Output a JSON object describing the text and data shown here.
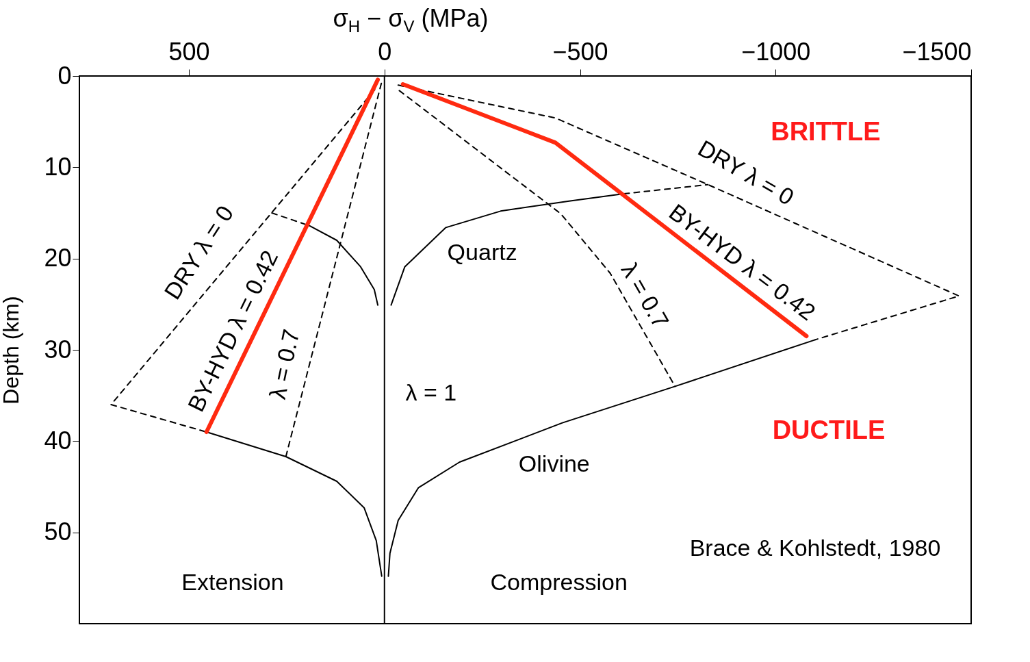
{
  "chart_data": {
    "type": "line",
    "xlabel": "σ$_{H}$ − σ$_{V}$ (MPa)",
    "ylabel": "Depth (km)",
    "xlim": [
      780,
      -1500
    ],
    "ylim": [
      60,
      0
    ],
    "xticks": [
      500,
      0,
      -500,
      -1000,
      -1500
    ],
    "yticks": [
      0,
      10,
      20,
      30,
      40,
      50
    ],
    "series": [
      {
        "color": "#000000",
        "line_style": "dashed",
        "x": [
          25,
          699,
          455
        ],
        "values": [
          1.5,
          36,
          39
        ]
      },
      {
        "color": "#000000",
        "line_style": "dashed",
        "x": [
          8,
          252
        ],
        "values": [
          0.8,
          41.7
        ]
      },
      {
        "color": "#000000",
        "line_style": "dashed",
        "x": [
          288,
          192
        ],
        "values": [
          15,
          16.4
        ]
      },
      {
        "color": "#000000",
        "line_style": "solid",
        "x": [
          192,
          122,
          61,
          26,
          17
        ],
        "values": [
          16.4,
          18,
          20.9,
          23.4,
          25.1
        ]
      },
      {
        "color": "#000000",
        "line_style": "solid",
        "x": [
          455,
          252,
          122,
          52,
          21,
          7
        ],
        "values": [
          39,
          41.7,
          44.4,
          47.3,
          50.9,
          54.8
        ]
      },
      {
        "color": "#000000",
        "line_style": "solid",
        "x": [
          -17,
          -52,
          -157,
          -297,
          -472,
          -612
        ],
        "values": [
          25.1,
          20.9,
          16.6,
          14.8,
          13.7,
          12.9
        ]
      },
      {
        "color": "#000000",
        "line_style": "dashed",
        "x": [
          -612,
          -827
        ],
        "values": [
          12.9,
          11.9
        ]
      },
      {
        "color": "#000000",
        "line_style": "dashed",
        "x": [
          -35,
          -437,
          -827,
          -1469,
          -1101
        ],
        "values": [
          1,
          4.6,
          11.9,
          24.1,
          28.9
        ]
      },
      {
        "color": "#000000",
        "line_style": "dashed",
        "x": [
          -38,
          -451,
          -577,
          -743
        ],
        "values": [
          1.6,
          15.1,
          21.6,
          34
        ]
      },
      {
        "color": "#000000",
        "line_style": "solid",
        "x": [
          -1101,
          -743,
          -455,
          -192,
          -87,
          -35,
          -14,
          -10
        ],
        "values": [
          28.9,
          34,
          38,
          42.3,
          45.1,
          48.7,
          52.3,
          54.8
        ]
      },
      {
        "color": "#ff2a10",
        "line_style": "solid",
        "x": [
          17,
          455
        ],
        "values": [
          0.4,
          39
        ]
      },
      {
        "color": "#ff2a10",
        "line_style": "solid",
        "x": [
          -47,
          -437,
          -1079
        ],
        "values": [
          0.9,
          7.3,
          28.5
        ]
      }
    ],
    "ref_lines": [
      {
        "axis": "x",
        "value": 0
      }
    ],
    "annotations": [
      "DRY λ = 0",
      "BY-HYD λ = 0.42",
      "λ = 0.7",
      "λ = 1",
      "Quartz",
      "Olivine",
      "Extension",
      "Compression",
      "BRITTLE",
      "DUCTILE",
      "DRY λ = 0",
      "BY-HYD λ = 0.42",
      "λ = 0.7",
      "Brace & Kohlstedt, 1980"
    ]
  }
}
